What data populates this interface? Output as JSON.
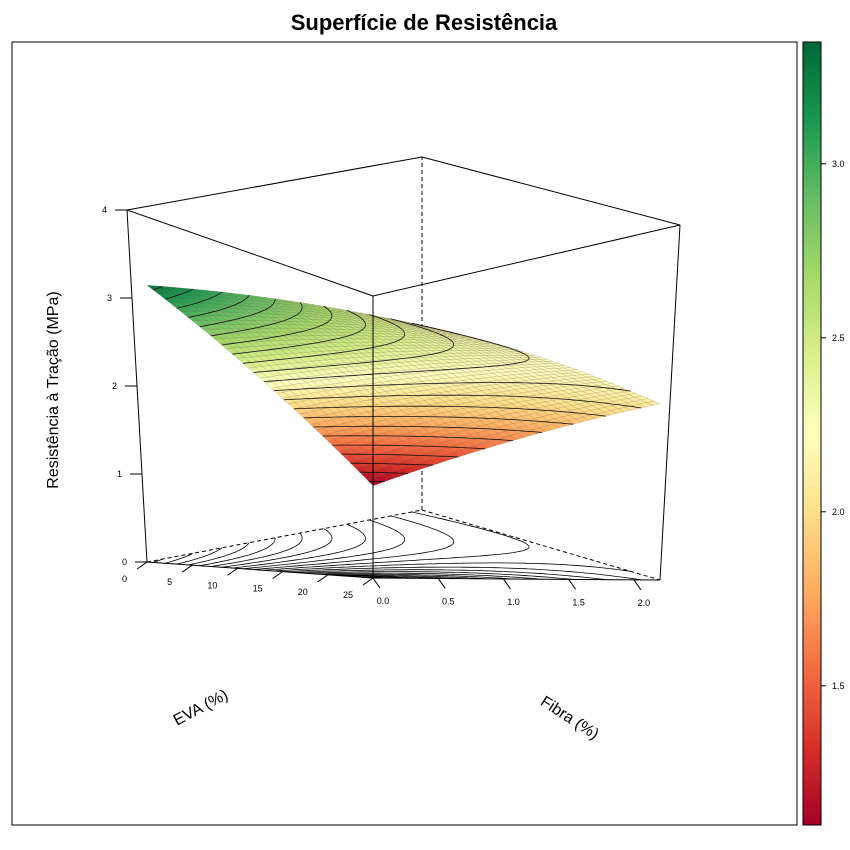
{
  "chart_data": {
    "type": "surface3d",
    "title": "Superfície de Resistência",
    "xlabel": "EVA (%)",
    "ylabel": "Fibra (%)",
    "zlabel": "Resistência à Tração (MPa)",
    "x_ticks": [
      "0",
      "5",
      "10",
      "15",
      "20",
      "25"
    ],
    "y_ticks": [
      "0.0",
      "0.5",
      "1.0",
      "1.5",
      "2.0"
    ],
    "z_ticks": [
      "0",
      "1",
      "2",
      "3",
      "4"
    ],
    "xlim": [
      0,
      25
    ],
    "ylim": [
      0,
      2.2
    ],
    "zlim": [
      0,
      4
    ],
    "surface_corners": [
      {
        "eva": 0,
        "fibra": 0,
        "resistencia": 3.3
      },
      {
        "eva": 25,
        "fibra": 0,
        "resistencia": 1.1
      },
      {
        "eva": 0,
        "fibra": 2.2,
        "resistencia": 2.2
      },
      {
        "eva": 25,
        "fibra": 2.2,
        "resistencia": 2.1
      }
    ],
    "colorbar": {
      "ticks": [
        "1.5",
        "2.0",
        "2.5",
        "3.0"
      ],
      "range": [
        1.1,
        3.35
      ],
      "colors": [
        "#a50026",
        "#d73027",
        "#f46d43",
        "#fdae61",
        "#fee08b",
        "#ffffbf",
        "#d9ef8b",
        "#a6d96a",
        "#66bd63",
        "#1a9850",
        "#006837"
      ]
    }
  }
}
